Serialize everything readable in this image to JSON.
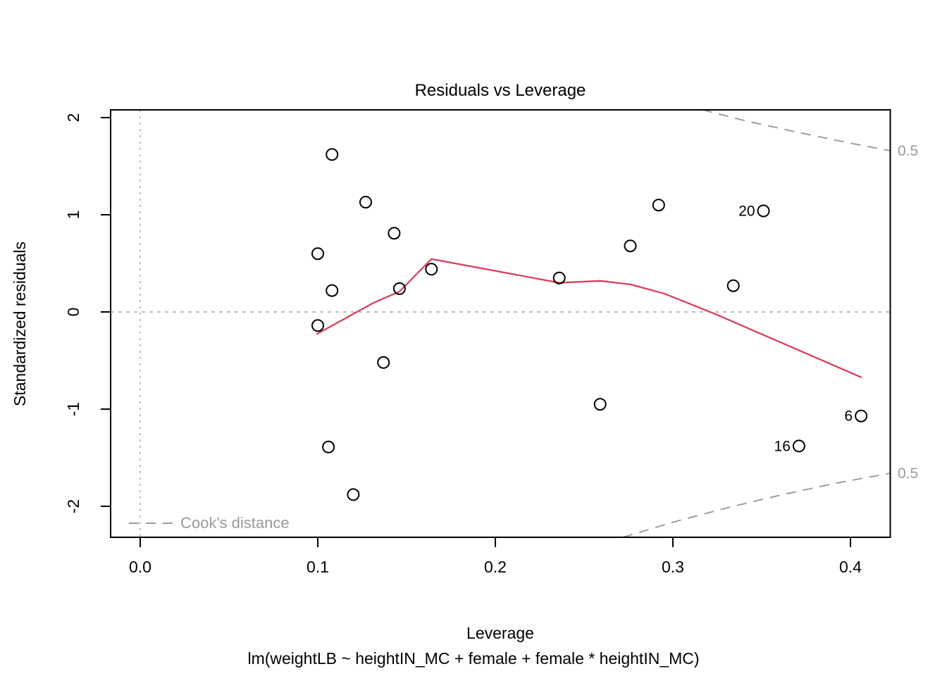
{
  "chart_data": {
    "type": "scatter",
    "title": "Residuals vs Leverage",
    "xlabel": "Leverage",
    "ylabel": "Standardized residuals",
    "caption": "lm(weightLB ~ heightIN_MC + female + female * heightIN_MC)",
    "legend_label": "Cook's distance",
    "cooks_level_label": "0.5",
    "x_tick_values": [
      0.0,
      0.1,
      0.2,
      0.3,
      0.4
    ],
    "x_tick_labels": [
      "0.0",
      "0.1",
      "0.2",
      "0.3",
      "0.4"
    ],
    "y_tick_values": [
      -2,
      -1,
      0,
      1,
      2
    ],
    "y_tick_labels": [
      "-2",
      "-1",
      "0",
      "1",
      "2"
    ],
    "xlim": [
      -0.017,
      0.422
    ],
    "ylim": [
      -2.32,
      2.08
    ],
    "grid": false,
    "legend_position": "bottom-left",
    "reference_lines": {
      "h_dotted_y": 0,
      "v_dotted_x": 0
    },
    "points": [
      {
        "x": 0.1,
        "y": 0.6
      },
      {
        "x": 0.1,
        "y": -0.14
      },
      {
        "x": 0.106,
        "y": -1.39
      },
      {
        "x": 0.108,
        "y": 1.62
      },
      {
        "x": 0.108,
        "y": 0.22
      },
      {
        "x": 0.12,
        "y": -1.88
      },
      {
        "x": 0.127,
        "y": 1.13
      },
      {
        "x": 0.137,
        "y": -0.52
      },
      {
        "x": 0.143,
        "y": 0.81
      },
      {
        "x": 0.146,
        "y": 0.24
      },
      {
        "x": 0.164,
        "y": 0.44
      },
      {
        "x": 0.236,
        "y": 0.35
      },
      {
        "x": 0.259,
        "y": -0.95
      },
      {
        "x": 0.276,
        "y": 0.68
      },
      {
        "x": 0.292,
        "y": 1.1
      },
      {
        "x": 0.334,
        "y": 0.27
      },
      {
        "x": 0.351,
        "y": 1.04
      },
      {
        "x": 0.371,
        "y": -1.38
      },
      {
        "x": 0.406,
        "y": -1.07
      }
    ],
    "labeled_points": [
      {
        "label": "20",
        "x": 0.351,
        "y": 1.04
      },
      {
        "label": "16",
        "x": 0.371,
        "y": -1.38
      },
      {
        "label": "6",
        "x": 0.406,
        "y": -1.07
      }
    ],
    "smooth_line": [
      [
        0.0996,
        -0.225
      ],
      [
        0.131,
        0.09
      ],
      [
        0.146,
        0.21
      ],
      [
        0.164,
        0.545
      ],
      [
        0.236,
        0.3
      ],
      [
        0.259,
        0.32
      ],
      [
        0.276,
        0.283
      ],
      [
        0.295,
        0.19
      ],
      [
        0.323,
        -0.015
      ],
      [
        0.406,
        -0.672
      ]
    ],
    "cooks_contour_upper": [
      [
        0.3166,
        2.081
      ],
      [
        0.34,
        1.971
      ],
      [
        0.37,
        1.85
      ],
      [
        0.4,
        1.736
      ],
      [
        0.4222,
        1.66
      ]
    ],
    "cooks_contour_lower": [
      [
        0.2719,
        -2.319
      ],
      [
        0.3,
        -2.164
      ],
      [
        0.33,
        -2.018
      ],
      [
        0.36,
        -1.887
      ],
      [
        0.39,
        -1.769
      ],
      [
        0.4222,
        -1.66
      ]
    ],
    "colors": {
      "smooth": "#db3e5c",
      "contour": "#9a9a9a",
      "dotted": "#b3b3b3",
      "text_gray": "#9a9a9a",
      "points": "#000000",
      "axis": "#000000"
    }
  }
}
